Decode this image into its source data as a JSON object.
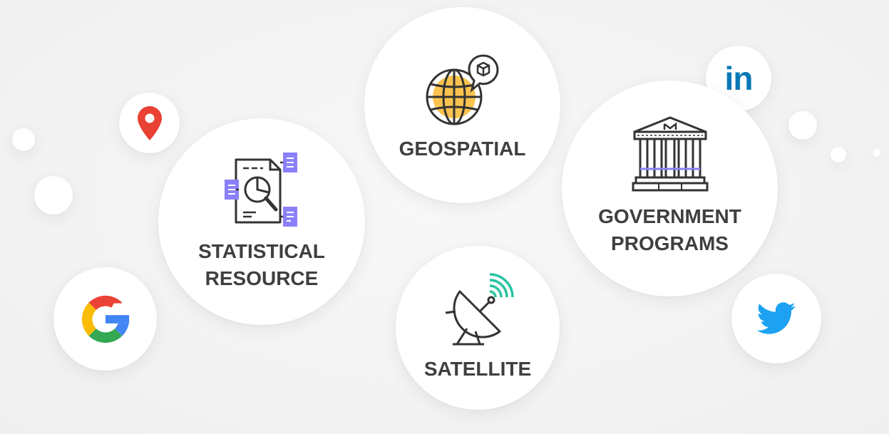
{
  "bubbles": {
    "geospatial": {
      "label": "GEOSPATIAL"
    },
    "statistical": {
      "line1": "STATISTICAL",
      "line2": "RESOURCE"
    },
    "satellite": {
      "label": "SATELLITE"
    },
    "government": {
      "line1": "GOVERNMENT",
      "line2": "PROGRAMS"
    }
  },
  "logos": {
    "linkedin": "in"
  },
  "colors": {
    "label_text": "#3f3f3f",
    "icon_stroke": "#333333",
    "globe_fill": "#f9c34e",
    "doc_accent": "#8b80f9",
    "signal": "#2ac3a2",
    "pin_red": "#e94234",
    "linkedin_blue": "#0a78b5",
    "twitter_blue": "#1da1f2",
    "google_blue": "#4285f4",
    "google_red": "#ea4335",
    "google_yellow": "#fbbc05",
    "google_green": "#34a853"
  },
  "icons": [
    "location-pin-icon",
    "google-icon",
    "linkedin-icon",
    "twitter-icon",
    "globe-icon",
    "report-icon",
    "satellite-dish-icon",
    "government-building-icon"
  ]
}
